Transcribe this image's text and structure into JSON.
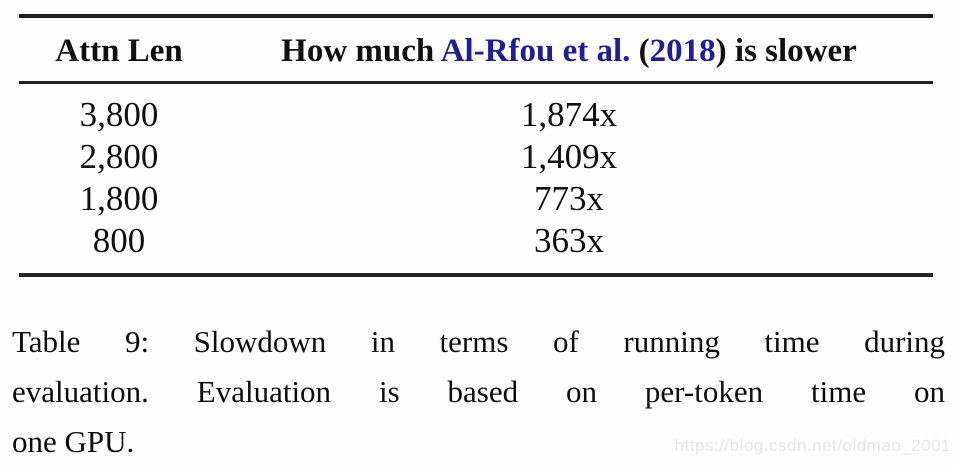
{
  "colors": {
    "citation_link": "#1e1e9c",
    "body_text": "#101010",
    "table_rule": "#222222",
    "watermark_text": "#e7e7ea"
  },
  "table": {
    "header": {
      "col1": "Attn Len",
      "col2_prefix": "How much ",
      "col2_citation": "Al-Rfou et al.",
      "col2_open_paren": " (",
      "col2_year": "2018",
      "col2_suffix": ") is slower"
    },
    "columns": [
      "Attn Len",
      "How much Al-Rfou et al. (2018) is slower"
    ],
    "rows": [
      {
        "attn_len": "3,800",
        "slowdown": "1,874x"
      },
      {
        "attn_len": "2,800",
        "slowdown": "1,409x"
      },
      {
        "attn_len": "1,800",
        "slowdown": "773x"
      },
      {
        "attn_len": "800",
        "slowdown": "363x"
      }
    ]
  },
  "caption": {
    "lines": [
      "Table 9: Slowdown in terms of running time during",
      "evaluation. Evaluation is based on per-token time on",
      "one GPU."
    ]
  },
  "watermark": "https://blog.csdn.net/oldmao_2001"
}
